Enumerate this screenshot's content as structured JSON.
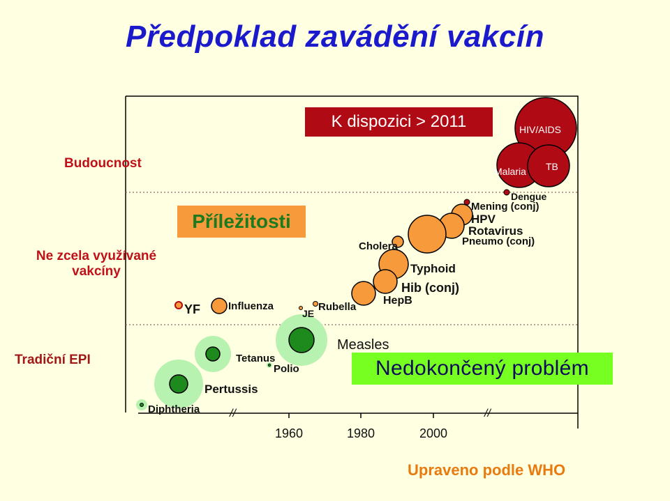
{
  "title": "Předpoklad zavádění vakcín",
  "future_box": "K dispozici  > 2011",
  "rows": {
    "future": "Budoucnost",
    "underused": "Ne zcela využívané vakcíny",
    "epi": "Tradiční EPI"
  },
  "opportunities": "Příležitosti",
  "problem": "Nedokončený problém",
  "credit": "Upraveno podle WHO",
  "vaccines": {
    "hiv": "HIV/AIDS",
    "malaria": "Malaria",
    "tb": "TB",
    "dengue": "Dengue",
    "mening": "Mening (conj)",
    "hpv": "HPV",
    "rota": "Rotavirus",
    "pneumo": "Pneumo (conj)",
    "cholera": "Cholera",
    "typhoid": "Typhoid",
    "hib": "Hib (conj)",
    "hepb": "HepB",
    "rubella": "Rubella",
    "je": "JE",
    "influenza": "Influenza",
    "yf": "YF",
    "measles": "Measles",
    "tetanus": "Tetanus",
    "polio": "Polio",
    "pertussis": "Pertussis",
    "diphtheria": "Diphtheria"
  },
  "axis": {
    "ticks": [
      "1960",
      "1980",
      "2000"
    ],
    "break_mark": "//"
  },
  "colors": {
    "background": "#FFFFE1",
    "title": "#1A1ACC",
    "future_bubble": "#B00A14",
    "underused_bubble": "#F79A3C",
    "epi_bubble": "#1E8A1E",
    "epi_halo": "#B8F2B0",
    "problem_box": "#77FF22"
  }
}
